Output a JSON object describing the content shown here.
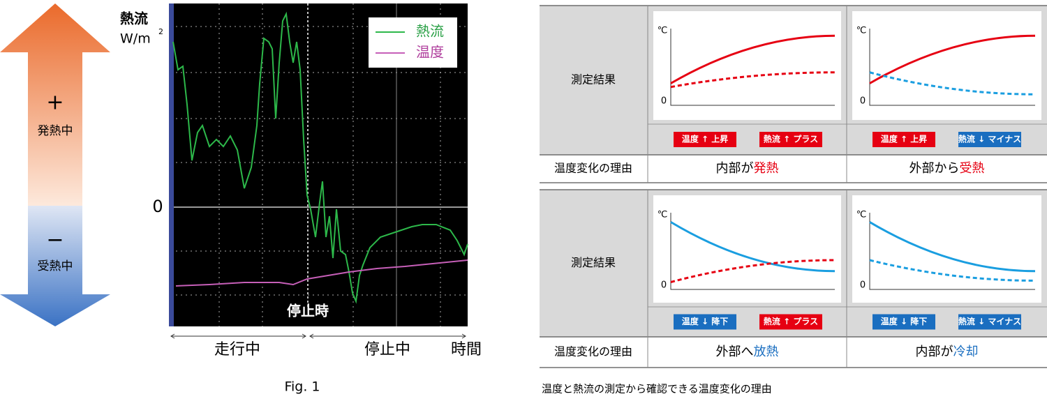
{
  "arrow": {
    "plus": "+",
    "plus_label": "発熱中",
    "minus": "−",
    "minus_label": "受熱中"
  },
  "figure": {
    "y_label": "熱流",
    "unit": "W/m",
    "unit_exp": "2",
    "zero": "0",
    "legend": [
      "熱流",
      "温度"
    ],
    "stop_label": "停止時",
    "phase_labels": [
      "走行中",
      "停止中"
    ],
    "x_label": "時間",
    "caption": "Fig. 1"
  },
  "tables": [
    {
      "row_header": "測定結果",
      "reason_header": "温度変化の理由",
      "cells": [
        {
          "axis_unit": "℃",
          "axis_zero": "0",
          "badges": [
            "温度 ↑ 上昇",
            "熱流 ↑ プラス"
          ],
          "reason": [
            "内部が",
            "発熱"
          ]
        },
        {
          "axis_unit": "℃",
          "axis_zero": "0",
          "badges": [
            "温度 ↑ 上昇",
            "熱流 ↓ マイナス"
          ],
          "reason": [
            "外部から",
            "受熱"
          ]
        }
      ]
    },
    {
      "row_header": "測定結果",
      "reason_header": "温度変化の理由",
      "cells": [
        {
          "axis_unit": "℃",
          "axis_zero": "0",
          "badges": [
            "温度 ↓ 降下",
            "熱流 ↑ プラス"
          ],
          "reason": [
            "外部へ",
            "放熱"
          ]
        },
        {
          "axis_unit": "℃",
          "axis_zero": "0",
          "badges": [
            "温度 ↓ 降下",
            "熱流 ↓ マイナス"
          ],
          "reason": [
            "内部が",
            "冷却"
          ]
        }
      ]
    }
  ],
  "caption": "温度と熱流の測定から確認できる温度変化の理由"
}
